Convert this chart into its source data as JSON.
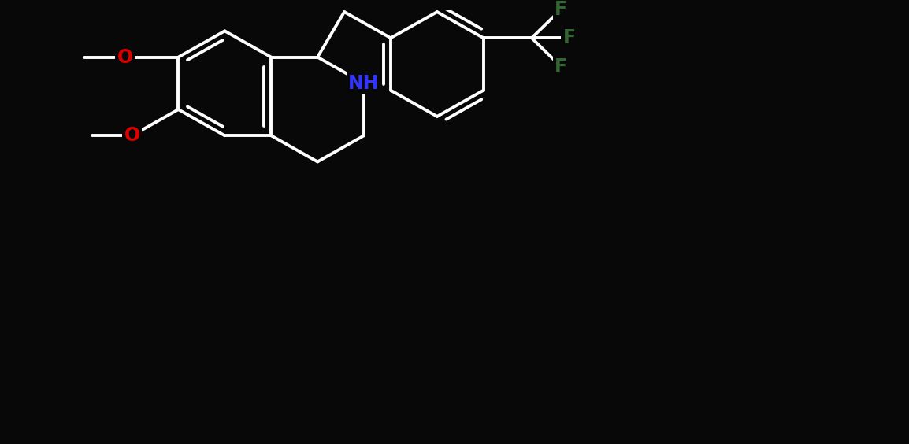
{
  "bg_color": "#080808",
  "bond_color": "white",
  "bond_lw": 2.8,
  "figsize": [
    11.54,
    5.64
  ],
  "dpi": 100,
  "xlim": [
    0.0,
    11.54
  ],
  "ylim": [
    0.0,
    5.64
  ],
  "NH_color": "#3333ff",
  "O_color": "#dd0000",
  "F_color": "#336633",
  "label_fontsize": 17,
  "arom_off": 0.09
}
